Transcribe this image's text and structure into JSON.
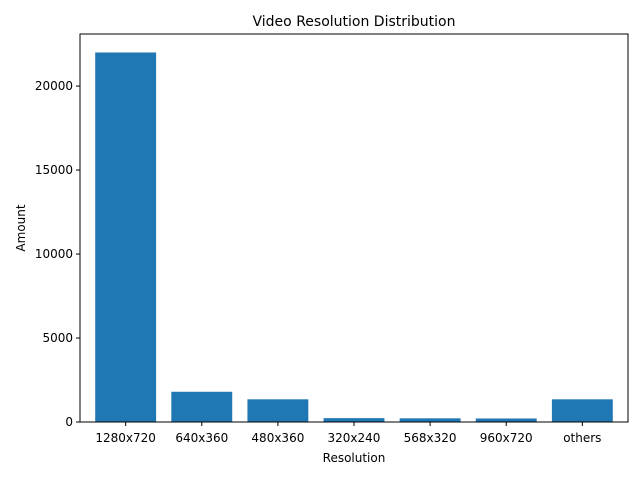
{
  "chart_data": {
    "type": "bar",
    "title": "Video Resolution Distribution",
    "xlabel": "Resolution",
    "ylabel": "Amount",
    "categories": [
      "1280x720",
      "640x360",
      "480x360",
      "320x240",
      "568x320",
      "960x720",
      "others"
    ],
    "values": [
      22000,
      1800,
      1350,
      230,
      220,
      210,
      1350
    ],
    "ylim": [
      0,
      23100
    ],
    "yticks": [
      0,
      5000,
      10000,
      15000,
      20000
    ],
    "ytick_labels": [
      "0",
      "5000",
      "10000",
      "15000",
      "20000"
    ],
    "bar_color": "#1f77b4",
    "grid": false,
    "legend": "none"
  }
}
